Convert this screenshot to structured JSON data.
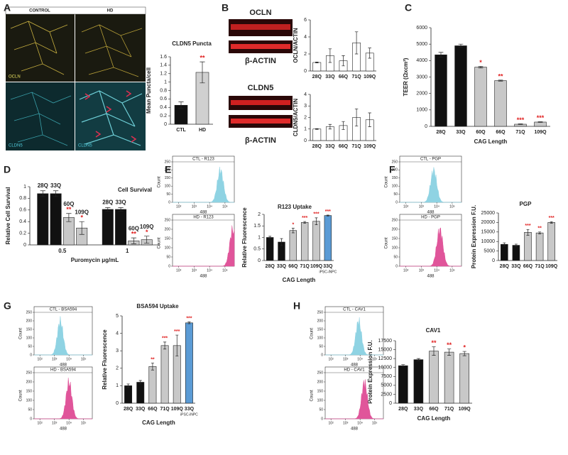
{
  "figure": {
    "panel_letters": [
      "A",
      "B",
      "C",
      "D",
      "E",
      "F",
      "G",
      "H"
    ],
    "micrograph_labels": [
      "CONTROL",
      "HD",
      "OCLN",
      "CLDN5",
      "CLDN5"
    ],
    "blot_labels": [
      "OCLN",
      "β-ACTIN",
      "CLDN5",
      "β-ACTIN"
    ]
  },
  "chart_data": [
    {
      "type": "bar",
      "title": "CLDN5 Puncta",
      "ylabel": "Mean Puncta/cell",
      "categories": [
        "CTL",
        "HD"
      ],
      "values": [
        0.45,
        1.23
      ],
      "errors": [
        0.08,
        0.25
      ],
      "colors": [
        "#111111",
        "#d0d0d0"
      ],
      "annotations": [
        null,
        "**"
      ],
      "annotation_color": "#e02020",
      "ylim": [
        0,
        1.6
      ],
      "yticks": [
        0,
        0.2,
        0.4,
        0.6,
        0.8,
        1,
        1.2,
        1.4,
        1.6
      ]
    },
    {
      "type": "bar",
      "ylabel": "OCLN/ACTIN",
      "categories": [
        "28Q",
        "33Q",
        "66Q",
        "71Q",
        "109Q"
      ],
      "values": [
        1,
        1.8,
        1.2,
        3.3,
        2.1
      ],
      "errors": [
        0.05,
        0.8,
        0.6,
        1.3,
        0.6
      ],
      "color": "#ffffff",
      "ylim": [
        0,
        6
      ],
      "yticks": [
        0,
        2,
        4,
        6
      ]
    },
    {
      "type": "bar",
      "ylabel": "CLDN5/ACTIN",
      "categories": [
        "28Q",
        "33Q",
        "66Q",
        "71Q",
        "109Q"
      ],
      "values": [
        1,
        1.2,
        1.3,
        2.0,
        1.8
      ],
      "errors": [
        0.03,
        0.2,
        0.35,
        0.75,
        0.6
      ],
      "color": "#ffffff",
      "ylim": [
        0,
        4
      ],
      "yticks": [
        0,
        1,
        2,
        3,
        4
      ]
    },
    {
      "type": "bar",
      "ylabel": "TEER (Ωxcm²)",
      "xlabel": "CAG Length",
      "categories": [
        "28Q",
        "33Q",
        "60Q",
        "66Q",
        "71Q",
        "109Q"
      ],
      "values": [
        4350,
        4900,
        3600,
        2780,
        130,
        260
      ],
      "errors": [
        150,
        100,
        50,
        30,
        20,
        20
      ],
      "colors": [
        "#111111",
        "#111111",
        "#c8c8c8",
        "#c8c8c8",
        "#c8c8c8",
        "#c8c8c8"
      ],
      "annotations": [
        null,
        null,
        "*",
        "**",
        "***",
        "***"
      ],
      "annotation_color": "#e02020",
      "ylim": [
        0,
        6000
      ],
      "yticks": [
        0,
        1000,
        2000,
        3000,
        4000,
        5000,
        6000
      ]
    },
    {
      "type": "grouped_bar",
      "title": "Cell Survival",
      "ylabel": "Relative Cell Survival",
      "xlabel": "Puromycin μg/mL",
      "categories": [
        "0.5",
        "1"
      ],
      "series": [
        {
          "name": "28Q",
          "color": "#111111",
          "values": [
            0.88,
            0.61
          ],
          "errors": [
            0.05,
            0.03
          ],
          "annotations": [
            null,
            null
          ]
        },
        {
          "name": "33Q",
          "color": "#111111",
          "values": [
            0.88,
            0.61
          ],
          "errors": [
            0.05,
            0.03
          ],
          "annotations": [
            null,
            null
          ]
        },
        {
          "name": "60Q",
          "color": "#c8c8c8",
          "values": [
            0.47,
            0.07
          ],
          "errors": [
            0.07,
            0.05
          ],
          "annotations": [
            "**",
            "**"
          ]
        },
        {
          "name": "109Q",
          "color": "#c8c8c8",
          "values": [
            0.29,
            0.09
          ],
          "errors": [
            0.11,
            0.06
          ],
          "annotations": [
            "*",
            "*"
          ]
        }
      ],
      "annotation_color": "#e02020",
      "ylim": [
        0,
        1
      ],
      "yticks": [
        0,
        0.2,
        0.4,
        0.6,
        0.8,
        1
      ]
    },
    {
      "type": "bar",
      "title": "R123 Uptake",
      "ylabel": "Relative Fluorescence",
      "xlabel": "CAG Length",
      "categories": [
        "28Q",
        "33Q",
        "66Q",
        "71Q",
        "109Q",
        "33Q"
      ],
      "category_sublabels": [
        null,
        null,
        null,
        null,
        null,
        "iPSC-iNPC"
      ],
      "values": [
        1.0,
        0.8,
        1.3,
        1.65,
        1.7,
        1.95
      ],
      "errors": [
        0.05,
        0.15,
        0.1,
        0.04,
        0.15,
        0.02
      ],
      "colors": [
        "#111111",
        "#111111",
        "#c8c8c8",
        "#c8c8c8",
        "#c8c8c8",
        "#5b9bd5"
      ],
      "annotations": [
        null,
        null,
        "*",
        "***",
        "***",
        "***"
      ],
      "annotation_color": "#e02020",
      "ylim": [
        0,
        2
      ],
      "yticks": [
        0,
        0.5,
        1,
        1.5,
        2
      ]
    },
    {
      "type": "bar",
      "title": "PGP",
      "ylabel": "Protein Expression F.U.",
      "categories": [
        "28Q",
        "33Q",
        "66Q",
        "71Q",
        "109Q"
      ],
      "values": [
        8500,
        8000,
        14800,
        14500,
        20000
      ],
      "errors": [
        800,
        600,
        1500,
        500,
        400
      ],
      "colors": [
        "#111111",
        "#111111",
        "#c8c8c8",
        "#c8c8c8",
        "#c8c8c8"
      ],
      "annotations": [
        null,
        null,
        "***",
        "**",
        "***"
      ],
      "annotation_color": "#e02020",
      "ylim": [
        0,
        25000
      ],
      "yticks": [
        0,
        5000,
        10000,
        15000,
        20000,
        25000
      ]
    },
    {
      "type": "bar",
      "title": "BSA594 Uptake",
      "ylabel": "Relative Fluorescence",
      "xlabel": "CAG Length",
      "categories": [
        "28Q",
        "33Q",
        "66Q",
        "71Q",
        "109Q",
        "33Q"
      ],
      "category_sublabels": [
        null,
        null,
        null,
        null,
        null,
        "iPSC-iNPC"
      ],
      "values": [
        1.0,
        1.2,
        2.1,
        3.3,
        3.3,
        4.6
      ],
      "errors": [
        0.1,
        0.1,
        0.2,
        0.2,
        0.6,
        0.05
      ],
      "colors": [
        "#111111",
        "#111111",
        "#c8c8c8",
        "#c8c8c8",
        "#c8c8c8",
        "#5b9bd5"
      ],
      "annotations": [
        null,
        null,
        "**",
        "***",
        "***",
        "***"
      ],
      "annotation_color": "#e02020",
      "ylim": [
        0,
        5
      ],
      "yticks": [
        0,
        1,
        2,
        3,
        4,
        5
      ]
    },
    {
      "type": "bar",
      "title": "CAV1",
      "ylabel": "Protein Expression F.U.",
      "xlabel": "CAG Length",
      "categories": [
        "28Q",
        "33Q",
        "66Q",
        "71Q",
        "109Q"
      ],
      "values": [
        10500,
        12200,
        14600,
        14300,
        13900
      ],
      "errors": [
        300,
        300,
        1200,
        900,
        600
      ],
      "colors": [
        "#111111",
        "#111111",
        "#c8c8c8",
        "#c8c8c8",
        "#c8c8c8"
      ],
      "annotations": [
        null,
        null,
        "**",
        "**",
        "*"
      ],
      "annotation_color": "#e02020",
      "ylim": [
        0,
        17500
      ],
      "yticks": [
        0,
        2500,
        5000,
        7500,
        10000,
        12500,
        15000,
        17500
      ]
    },
    {
      "type": "flow",
      "title": "CTL - R123",
      "ylabel": "Count",
      "xlabel": "488",
      "color": "#8fd3e3",
      "log_x": true,
      "xlim": [
        40,
        400000
      ],
      "xticks": [
        {
          "value": 100,
          "label": "10²"
        },
        {
          "value": 1000,
          "label": "10³"
        },
        {
          "value": 10000,
          "label": "10⁴"
        },
        {
          "value": 100000,
          "label": "10⁵"
        }
      ],
      "ylim": [
        0,
        250
      ],
      "yticks": [
        0,
        50,
        100,
        150,
        200,
        250
      ]
    },
    {
      "type": "flow",
      "title": "HD - R123",
      "ylabel": "Count",
      "xlabel": "488",
      "color": "#e0559a",
      "log_x": true,
      "xlim": [
        40,
        400000
      ],
      "xticks": [
        {
          "value": 100,
          "label": "10²"
        },
        {
          "value": 1000,
          "label": "10³"
        },
        {
          "value": 10000,
          "label": "10⁴"
        },
        {
          "value": 100000,
          "label": "10⁵"
        }
      ],
      "ylim": [
        0,
        250
      ],
      "yticks": [
        0,
        50,
        100,
        150,
        200,
        250
      ]
    },
    {
      "type": "flow",
      "title": "CTL - PGP",
      "ylabel": "Count",
      "xlabel": "488",
      "color": "#8fd3e3",
      "log_x": true,
      "xlim": [
        40,
        400000
      ],
      "xticks": [
        {
          "value": 100,
          "label": "10²"
        },
        {
          "value": 1000,
          "label": "10³"
        },
        {
          "value": 10000,
          "label": "10⁴"
        },
        {
          "value": 100000,
          "label": "10⁵"
        }
      ],
      "ylim": [
        0,
        250
      ],
      "yticks": [
        0,
        50,
        100,
        150,
        200,
        250
      ]
    },
    {
      "type": "flow",
      "title": "HD - PGP",
      "ylabel": "Count",
      "xlabel": "488",
      "color": "#e0559a",
      "log_x": true,
      "xlim": [
        40,
        400000
      ],
      "xticks": [
        {
          "value": 100,
          "label": "10²"
        },
        {
          "value": 1000,
          "label": "10³"
        },
        {
          "value": 10000,
          "label": "10⁴"
        },
        {
          "value": 100000,
          "label": "10⁵"
        }
      ],
      "ylim": [
        0,
        250
      ],
      "yticks": [
        0,
        50,
        100,
        150,
        200,
        250
      ]
    },
    {
      "type": "flow",
      "title": "CTL - BSA594",
      "ylabel": "Count",
      "xlabel": "488",
      "color": "#8fd3e3",
      "log_x": true,
      "xlim": [
        40,
        400000
      ],
      "xticks": [
        {
          "value": 100,
          "label": "10²"
        },
        {
          "value": 1000,
          "label": "10³"
        },
        {
          "value": 10000,
          "label": "10⁴"
        },
        {
          "value": 100000,
          "label": "10⁵"
        }
      ],
      "ylim": [
        0,
        250
      ],
      "yticks": [
        0,
        50,
        100,
        150,
        200,
        250
      ]
    },
    {
      "type": "flow",
      "title": "HD - BSA594",
      "ylabel": "Count",
      "xlabel": "488",
      "color": "#e0559a",
      "log_x": true,
      "xlim": [
        40,
        400000
      ],
      "xticks": [
        {
          "value": 100,
          "label": "10²"
        },
        {
          "value": 1000,
          "label": "10³"
        },
        {
          "value": 10000,
          "label": "10⁴"
        },
        {
          "value": 100000,
          "label": "10⁵"
        }
      ],
      "ylim": [
        0,
        250
      ],
      "yticks": [
        0,
        50,
        100,
        150,
        200,
        250
      ]
    },
    {
      "type": "flow",
      "title": "CTL - CAV1",
      "ylabel": "Count",
      "xlabel": "488",
      "color": "#8fd3e3",
      "log_x": true,
      "xlim": [
        40,
        400000
      ],
      "xticks": [
        {
          "value": 100,
          "label": "10²"
        },
        {
          "value": 1000,
          "label": "10³"
        },
        {
          "value": 10000,
          "label": "10⁴"
        },
        {
          "value": 100000,
          "label": "10⁵"
        }
      ],
      "ylim": [
        0,
        250
      ],
      "yticks": [
        0,
        50,
        100,
        150,
        200,
        250
      ]
    },
    {
      "type": "flow",
      "title": "HD - CAV1",
      "ylabel": "Count",
      "xlabel": "488",
      "color": "#e0559a",
      "log_x": true,
      "xlim": [
        40,
        400000
      ],
      "xticks": [
        {
          "value": 100,
          "label": "10²"
        },
        {
          "value": 1000,
          "label": "10³"
        },
        {
          "value": 10000,
          "label": "10⁴"
        },
        {
          "value": 100000,
          "label": "10⁵"
        }
      ],
      "ylim": [
        0,
        250
      ],
      "yticks": [
        0,
        50,
        100,
        150,
        200,
        250
      ]
    }
  ]
}
